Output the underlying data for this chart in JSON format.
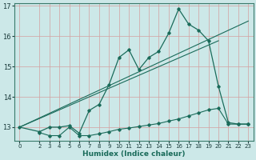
{
  "xlabel": "Humidex (Indice chaleur)",
  "bg_color": "#cce8e8",
  "grid_color": "#d4a0a0",
  "line_color": "#1a6b5a",
  "xlim": [
    -0.5,
    23.5
  ],
  "ylim": [
    12.55,
    17.1
  ],
  "yticks": [
    13,
    14,
    15,
    16,
    17
  ],
  "xticks": [
    0,
    2,
    3,
    4,
    5,
    6,
    7,
    8,
    9,
    10,
    11,
    12,
    13,
    14,
    15,
    16,
    17,
    18,
    19,
    20,
    21,
    22,
    23
  ],
  "main_curve_x": [
    0,
    2,
    3,
    4,
    5,
    6,
    7,
    8,
    9,
    10,
    11,
    12,
    13,
    14,
    15,
    16,
    17,
    18,
    19,
    20,
    21,
    22,
    23
  ],
  "main_curve_y": [
    13.0,
    12.85,
    13.0,
    13.0,
    13.05,
    12.8,
    13.55,
    13.75,
    14.4,
    15.3,
    15.55,
    14.9,
    15.3,
    15.5,
    16.1,
    16.9,
    16.4,
    16.2,
    15.85,
    14.35,
    13.15,
    13.1,
    13.1
  ],
  "flat_curve_x": [
    2,
    3,
    4,
    5,
    6,
    7,
    8,
    9,
    10,
    11,
    12,
    13,
    14,
    15,
    16,
    17,
    18,
    19,
    20,
    21,
    22,
    23
  ],
  "flat_curve_y": [
    12.82,
    12.72,
    12.72,
    13.0,
    12.72,
    12.72,
    12.78,
    12.85,
    12.93,
    12.97,
    13.02,
    13.07,
    13.12,
    13.2,
    13.27,
    13.37,
    13.47,
    13.57,
    13.62,
    13.1,
    13.1,
    13.1
  ],
  "line1_x": [
    0,
    20
  ],
  "line1_y": [
    13.0,
    15.85
  ],
  "line2_x": [
    0,
    23
  ],
  "line2_y": [
    13.0,
    16.5
  ]
}
